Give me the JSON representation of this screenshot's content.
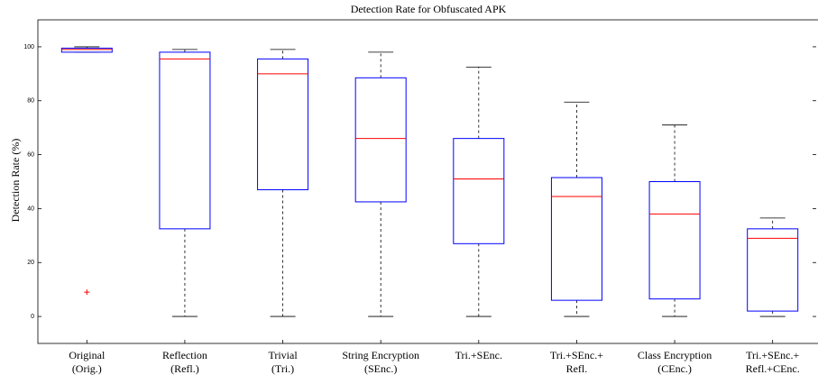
{
  "chart_data": {
    "type": "box",
    "title": "Detection Rate for Obfuscated APK",
    "y_label": "Detection Rate (%)",
    "categories": [
      [
        "Original",
        "(Orig.)"
      ],
      [
        "Reflection",
        "(Refl.)"
      ],
      [
        "Trivial",
        "(Tri.)"
      ],
      [
        "String Encryption",
        "(SEnc.)"
      ],
      [
        "Tri.+SEnc."
      ],
      [
        "Tri.+SEnc.+",
        "Refl."
      ],
      [
        "Class Encryption",
        "(CEnc.)"
      ],
      [
        "Tri.+SEnc.+",
        "Refl.+CEnc."
      ]
    ],
    "boxes": [
      {
        "min": 98,
        "q1": 98,
        "median": 99,
        "q3": 99.5,
        "max": 100,
        "outliers": [
          9
        ]
      },
      {
        "min": 0,
        "q1": 32.5,
        "median": 95.5,
        "q3": 98,
        "max": 99,
        "outliers": []
      },
      {
        "min": 0,
        "q1": 47,
        "median": 90,
        "q3": 95.5,
        "max": 99,
        "outliers": []
      },
      {
        "min": 0,
        "q1": 42.5,
        "median": 66,
        "q3": 88.5,
        "max": 98,
        "outliers": []
      },
      {
        "min": 0,
        "q1": 27,
        "median": 51,
        "q3": 66,
        "max": 92.5,
        "outliers": []
      },
      {
        "min": 0,
        "q1": 6,
        "median": 44.5,
        "q3": 51.5,
        "max": 79.5,
        "outliers": []
      },
      {
        "min": 0,
        "q1": 6.5,
        "median": 38,
        "q3": 50,
        "max": 71,
        "outliers": []
      },
      {
        "min": 0,
        "q1": 2,
        "median": 29,
        "q3": 32.5,
        "max": 36.5,
        "outliers": []
      }
    ],
    "box_color": "#0000ff",
    "median_color": "#ff0000",
    "whisker_color": "#000000",
    "outlier_color": "#ff0000",
    "ylim": [
      -10,
      110
    ],
    "yticks": [
      0,
      20,
      40,
      60,
      80,
      100
    ]
  }
}
